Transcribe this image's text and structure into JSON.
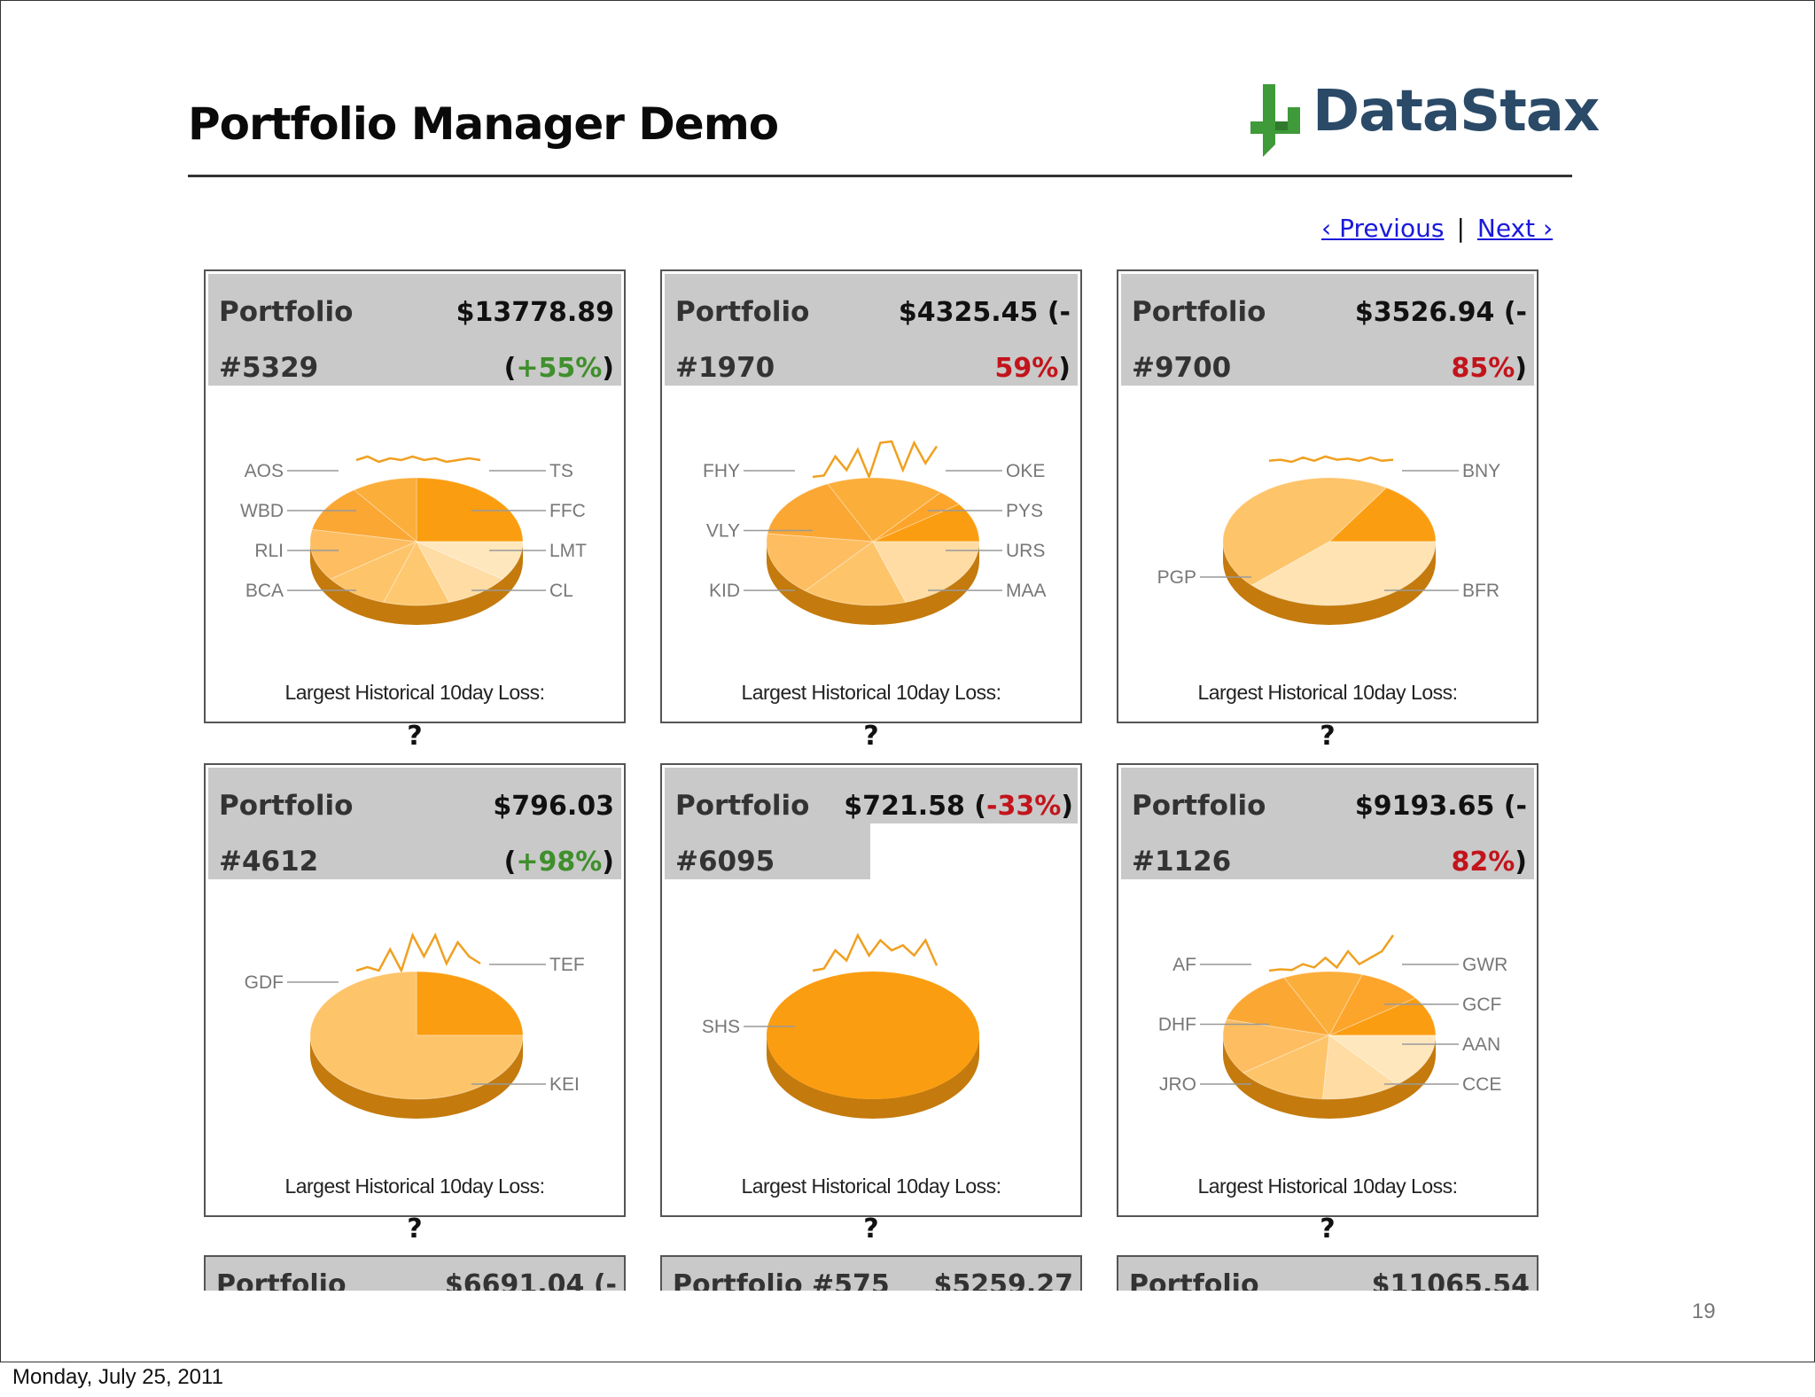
{
  "slide": {
    "title": "Portfolio Manager Demo",
    "logo_text": "DataStax",
    "page_number": "19",
    "date": "Monday, July 25, 2011"
  },
  "nav": {
    "previous": "‹ Previous",
    "separator": "|",
    "next": "Next ›"
  },
  "colors": {
    "header_bg": "#c9c9c9",
    "positive": "#3f8f2c",
    "negative": "#c2141b",
    "link": "#1a1adb",
    "sparkline": "#f0a020",
    "logo_green": "#3f9a3a",
    "logo_blue": "#2a4a68"
  },
  "loss_label": "Largest Historical 10day Loss:",
  "loss_value": "?",
  "portfolios": [
    {
      "label_line1": "Portfolio",
      "label_line2": "#5329",
      "value_line1": "$13778.89",
      "value_line2_pre": "(",
      "value_line2_pct": "+55%",
      "value_line2_post": ")",
      "trend": "positive",
      "sparkline": [
        5,
        5.2,
        4.9,
        5.1,
        5,
        5.2,
        5.0,
        5.1,
        4.9,
        5.0,
        5.1,
        5.0
      ],
      "tickers_left": [
        "AOS",
        "WBD",
        "RLI",
        "BCA"
      ],
      "tickers_right": [
        "TS",
        "FFC",
        "LMT",
        "CL"
      ],
      "slices": [
        0.25,
        0.1,
        0.12,
        0.13,
        0.1,
        0.1,
        0.1,
        0.1
      ],
      "slice_colors": [
        "#fb9d10",
        "#fcae3a",
        "#fba733",
        "#fdbd60",
        "#fec46a",
        "#fec870",
        "#ffdca3",
        "#ffe7bd"
      ]
    },
    {
      "label_line1": "Portfolio",
      "label_line2": "#1970",
      "value_line1": "$4325.45 (-",
      "value_line2_pre": "",
      "value_line2_pct": "59%",
      "value_line2_post": ")",
      "trend": "negative",
      "sparkline": [
        3,
        3.2,
        6,
        4,
        7,
        3,
        8,
        8.2,
        4,
        8,
        5,
        7.5
      ],
      "tickers_left": [
        "FHY",
        "VLY",
        "KID"
      ],
      "tickers_right": [
        "OKE",
        "PYS",
        "URS",
        "MAA"
      ],
      "slices": [
        0.1,
        0.04,
        0.18,
        0.16,
        0.16,
        0.16,
        0.2
      ],
      "slice_colors": [
        "#fb9d10",
        "#fda42a",
        "#fcae3a",
        "#fba733",
        "#fdbd60",
        "#fec46a",
        "#ffdca3"
      ]
    },
    {
      "label_line1": "Portfolio",
      "label_line2": "#9700",
      "value_line1": "$3526.94 (-",
      "value_line2_pre": "",
      "value_line2_pct": "85%",
      "value_line2_post": ")",
      "trend": "negative",
      "sparkline": [
        5,
        5.1,
        4.9,
        5.3,
        5,
        5.4,
        5.1,
        5.2,
        5.0,
        5.3,
        5.0,
        5.1
      ],
      "tickers_left": [
        "PGP"
      ],
      "tickers_right": [
        "BNY",
        "BFR"
      ],
      "slices": [
        0.16,
        0.46,
        0.38
      ],
      "slice_colors": [
        "#fb9d10",
        "#fec46a",
        "#ffe3b3"
      ]
    },
    {
      "label_line1": "Portfolio",
      "label_line2": "#4612",
      "value_line1": "$796.03",
      "value_line2_pre": "(",
      "value_line2_pct": "+98%",
      "value_line2_post": ")",
      "trend": "positive",
      "sparkline": [
        3,
        3.5,
        3,
        6,
        3,
        8,
        5,
        8,
        4,
        7,
        5,
        4
      ],
      "tickers_left": [
        "GDF"
      ],
      "tickers_right": [
        "TEF",
        "KEI"
      ],
      "slices": [
        0.25,
        0.75
      ],
      "slice_colors": [
        "#fb9d10",
        "#fec46a"
      ]
    },
    {
      "label_line1": "Portfolio",
      "label_line2": "#6095",
      "value_line1": "$721.58 (",
      "value_line2_pre": "",
      "value_line2_pct": "-33%",
      "value_line2_post": ")",
      "trend": "negative",
      "sparkline": [
        3,
        3.2,
        5,
        4,
        6.5,
        4.5,
        6,
        5,
        5.5,
        4.5,
        6,
        3.5
      ],
      "tickers_left": [
        "SHS"
      ],
      "tickers_right": [],
      "slices": [
        1.0
      ],
      "slice_colors": [
        "#fb9d10"
      ]
    },
    {
      "label_line1": "Portfolio",
      "label_line2": "#1126",
      "value_line1": "$9193.65 (-",
      "value_line2_pre": "",
      "value_line2_pct": "82%",
      "value_line2_post": ")",
      "trend": "negative",
      "sparkline": [
        3,
        3.2,
        3.1,
        4,
        3.5,
        5,
        3.5,
        6,
        4,
        5,
        6,
        8.5
      ],
      "tickers_left": [
        "AF",
        "DHF",
        "JRO"
      ],
      "tickers_right": [
        "GWR",
        "GCF",
        "AAN",
        "CCE"
      ],
      "slices": [
        0.1,
        0.1,
        0.12,
        0.14,
        0.14,
        0.14,
        0.12,
        0.14
      ],
      "slice_colors": [
        "#fb9d10",
        "#fda42a",
        "#fcae3a",
        "#fba733",
        "#fdbd60",
        "#fec46a",
        "#ffdca3",
        "#ffe7bd"
      ]
    }
  ],
  "partial_portfolios": [
    {
      "left": "Portfolio",
      "right": "$6691.04 (-"
    },
    {
      "left": "Portfolio #575",
      "right": "$5259.27"
    },
    {
      "left": "Portfolio",
      "right": "$11065.54"
    }
  ]
}
